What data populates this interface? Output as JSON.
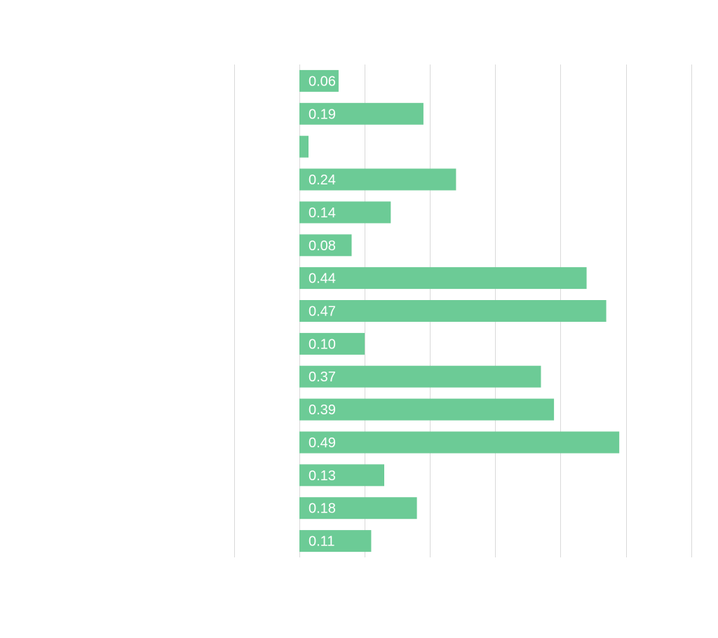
{
  "chart_data": {
    "type": "bar",
    "orientation": "horizontal",
    "title": "",
    "xlabel": "",
    "ylabel": "",
    "grid": true,
    "bar_color": "#6ccb96",
    "grid_color": "#d9d9d9",
    "values": [
      0.06,
      0.19,
      0.014,
      0.24,
      0.14,
      0.08,
      0.44,
      0.47,
      0.1,
      0.37,
      0.39,
      0.49,
      0.13,
      0.18,
      0.11
    ],
    "labels": [
      "0.06",
      "0.19",
      "",
      "0.24",
      "0.14",
      "0.08",
      "0.44",
      "0.47",
      "0.10",
      "0.37",
      "0.39",
      "0.49",
      "0.13",
      "0.18",
      "0.11"
    ],
    "xlim": [
      -0.1,
      0.6
    ]
  }
}
